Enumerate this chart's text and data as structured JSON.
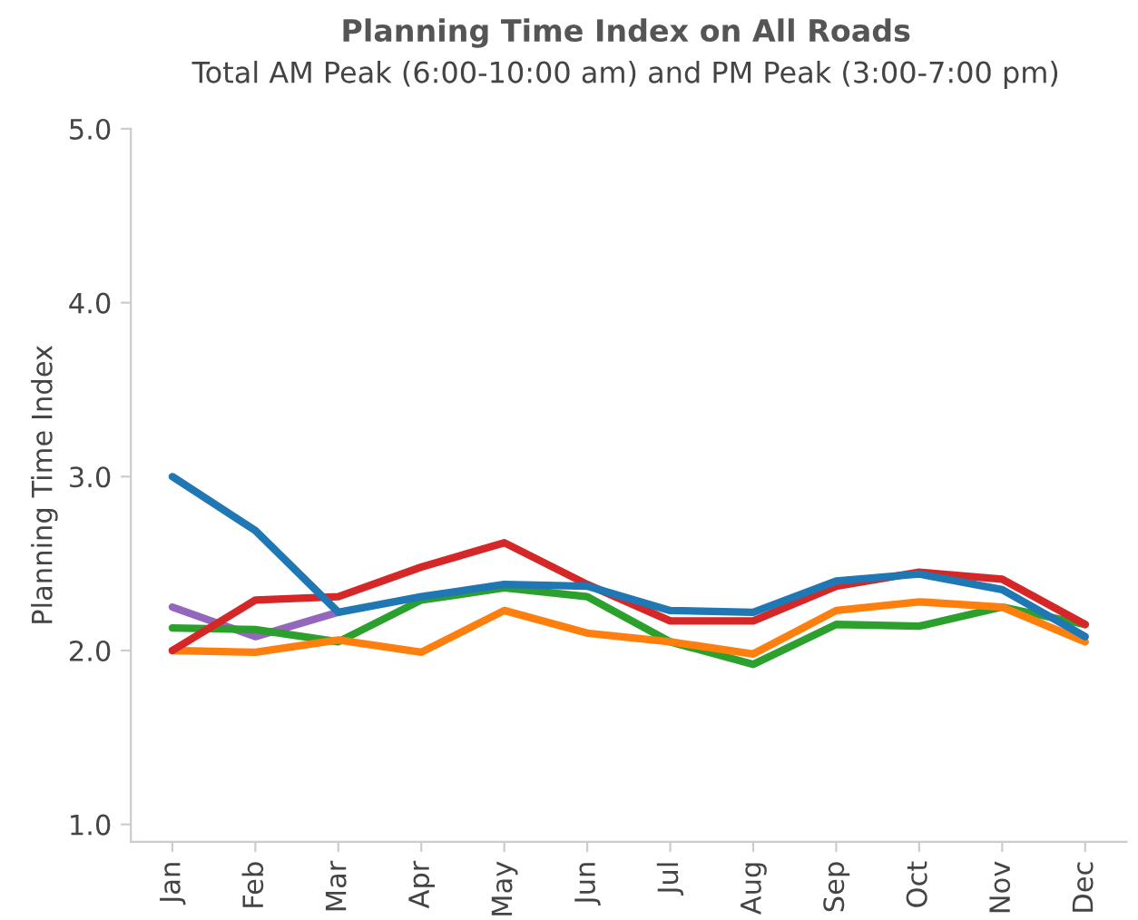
{
  "chart_data": {
    "type": "line",
    "title": "Planning Time Index on All Roads",
    "subtitle": "Total AM Peak (6:00-10:00 am) and PM Peak (3:00-7:00 pm)",
    "ylabel": "Planning Time Index",
    "categories": [
      "Jan",
      "Feb",
      "Mar",
      "Apr",
      "May",
      "Jun",
      "Jul",
      "Aug",
      "Sep",
      "Oct",
      "Nov",
      "Dec"
    ],
    "series": [
      {
        "color": "#9467bd",
        "values": [
          2.25,
          2.08,
          2.22,
          null,
          null,
          null,
          null,
          null,
          null,
          null,
          null,
          null
        ]
      },
      {
        "color": "#2ca02c",
        "values": [
          2.13,
          2.12,
          2.05,
          2.29,
          2.36,
          2.31,
          2.05,
          1.92,
          2.15,
          2.14,
          2.25,
          2.15
        ]
      },
      {
        "color": "#ff7f0e",
        "values": [
          2.0,
          1.99,
          2.06,
          1.99,
          2.23,
          2.1,
          2.05,
          1.98,
          2.23,
          2.28,
          2.25,
          2.05
        ]
      },
      {
        "color": "#d62728",
        "values": [
          2.0,
          2.29,
          2.31,
          2.48,
          2.62,
          2.38,
          2.17,
          2.17,
          2.37,
          2.45,
          2.41,
          2.15
        ]
      },
      {
        "color": "#1f77b4",
        "values": [
          3.0,
          2.69,
          2.22,
          2.31,
          2.38,
          2.37,
          2.23,
          2.22,
          2.4,
          2.44,
          2.35,
          2.08
        ]
      }
    ],
    "ylim": [
      0.9,
      5.0
    ],
    "yticks": [
      {
        "value": 1,
        "label": "1.0"
      },
      {
        "value": 2,
        "label": "2.0"
      },
      {
        "value": 3,
        "label": "3.0"
      },
      {
        "value": 4,
        "label": "4.0"
      },
      {
        "value": 5,
        "label": "5.0"
      }
    ],
    "grid": false,
    "legend": false,
    "line_style": "solid",
    "marker": "none"
  }
}
